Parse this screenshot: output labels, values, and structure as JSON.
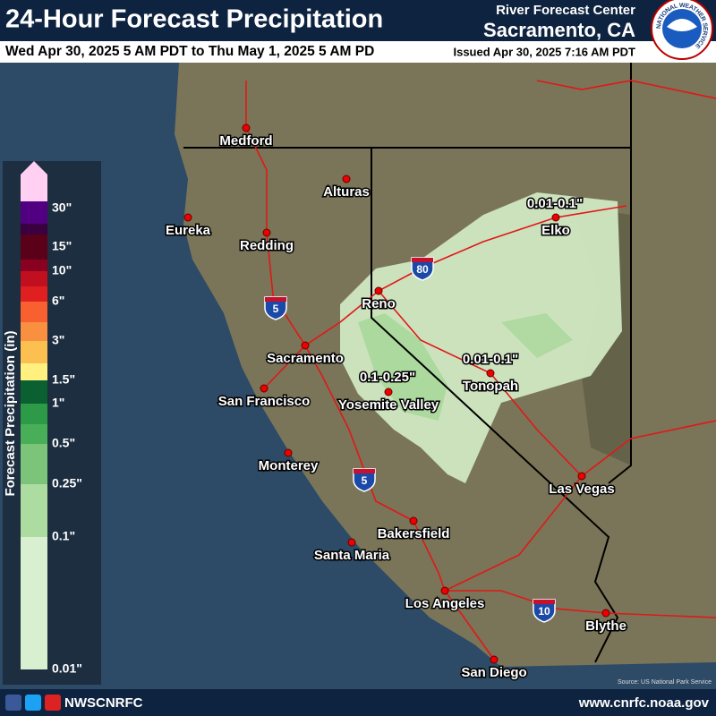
{
  "header": {
    "title": "24-Hour Forecast Precipitation",
    "subtitle": "Wed Apr 30, 2025 5 AM PDT to Thu May 1, 2025 5 AM PD",
    "issued": "Issued Apr 30, 2025 7:16 AM PDT",
    "office": "River Forecast Center",
    "office_location": "Sacramento, CA"
  },
  "logo_text": "NATIONAL WEATHER SERVICE",
  "legend": {
    "title": "Forecast Precipitation (in)",
    "labels": [
      "30\"",
      "15\"",
      "10\"",
      "6\"",
      "3\"",
      "1.5\"",
      "1\"",
      "0.5\"",
      "0.25\"",
      "0.1\"",
      "0.01\""
    ]
  },
  "map": {
    "cities": [
      "Medford",
      "Eureka",
      "Alturas",
      "Redding",
      "Reno",
      "Elko",
      "Sacramento",
      "San Francisco",
      "Yosemite Valley",
      "Tonopah",
      "Monterey",
      "Las Vegas",
      "Bakersfield",
      "Santa Maria",
      "Los Angeles",
      "Blythe",
      "San Diego"
    ],
    "regions": [
      "0.01-0.1\"",
      "0.01-0.1\"",
      "0.1-0.25\""
    ],
    "interstates": [
      "5",
      "5",
      "80",
      "10"
    ],
    "source": "Source: US National Park Service"
  },
  "footer": {
    "handle": "NWSCNRFC",
    "url": "www.cnrfc.noaa.gov"
  }
}
